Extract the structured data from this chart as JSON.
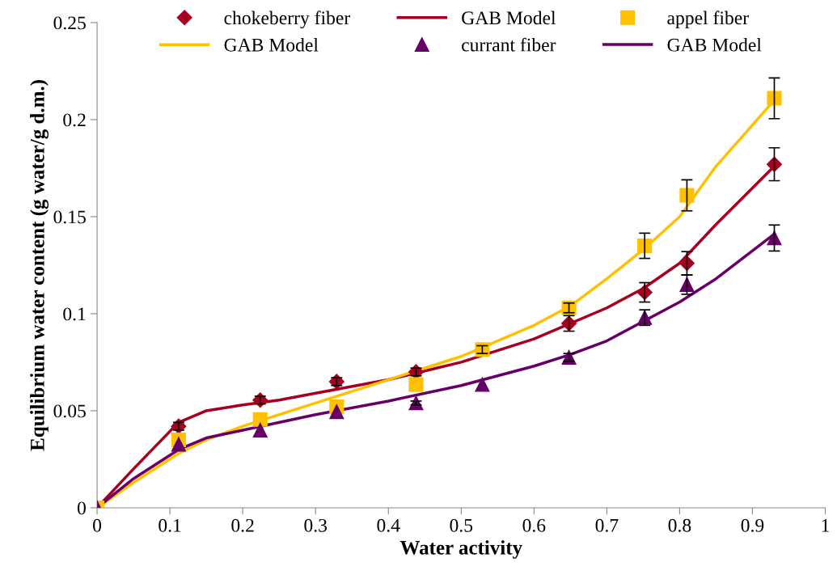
{
  "chart_data": {
    "type": "scatter",
    "xlabel": "Water activity",
    "ylabel": "Equilibrium water content (g water/g d.m.)",
    "xlim": [
      0,
      1
    ],
    "xticks": [
      0,
      0.1,
      0.2,
      0.3,
      0.4,
      0.5,
      0.6,
      0.7,
      0.8,
      0.9,
      1
    ],
    "ylim": [
      0,
      0.25
    ],
    "yticks": [
      0,
      0.05,
      0.1,
      0.15,
      0.2,
      0.25
    ],
    "grid": false,
    "legend": "top",
    "x": [
      0,
      0.112,
      0.224,
      0.329,
      0.438,
      0.529,
      0.648,
      0.752,
      0.81,
      0.93
    ],
    "series": [
      {
        "name": "chokeberry fiber",
        "marker": "diamond",
        "color": "#a50021",
        "values": [
          null,
          0.042,
          0.0555,
          0.065,
          0.07,
          null,
          0.095,
          0.111,
          0.126,
          0.177
        ],
        "errors": [
          null,
          0.002,
          0.002,
          0.002,
          0.002,
          null,
          0.004,
          0.005,
          0.006,
          0.0085
        ]
      },
      {
        "name": "GAB Model",
        "type": "line",
        "color": "#a50021",
        "x": [
          0,
          0.05,
          0.112,
          0.15,
          0.2,
          0.25,
          0.3,
          0.4,
          0.5,
          0.6,
          0.7,
          0.75,
          0.8,
          0.85,
          0.93
        ],
        "values": [
          0,
          0.02,
          0.044,
          0.05,
          0.053,
          0.0555,
          0.059,
          0.066,
          0.075,
          0.087,
          0.103,
          0.113,
          0.126,
          0.146,
          0.176
        ]
      },
      {
        "name": "appel fiber",
        "marker": "square",
        "color": "#ffc000",
        "values": [
          0,
          0.035,
          0.0455,
          0.052,
          0.0635,
          0.0815,
          0.103,
          0.135,
          0.161,
          0.211
        ],
        "errors": [
          null,
          null,
          null,
          null,
          null,
          0.002,
          0.0025,
          0.0065,
          0.008,
          0.0105
        ]
      },
      {
        "name": "GAB Model",
        "type": "line",
        "color": "#ffc000",
        "x": [
          0,
          0.05,
          0.112,
          0.15,
          0.2,
          0.3,
          0.4,
          0.5,
          0.6,
          0.65,
          0.7,
          0.75,
          0.8,
          0.85,
          0.93
        ],
        "values": [
          0,
          0.013,
          0.028,
          0.035,
          0.042,
          0.054,
          0.066,
          0.078,
          0.094,
          0.104,
          0.118,
          0.133,
          0.15,
          0.176,
          0.21
        ]
      },
      {
        "name": "currant fiber",
        "marker": "triangle",
        "color": "#660066",
        "values": [
          0,
          0.0327,
          0.04,
          0.0495,
          0.054,
          0.0635,
          0.0775,
          0.098,
          0.115,
          0.139
        ],
        "errors": [
          null,
          null,
          null,
          null,
          0.001,
          null,
          0.002,
          0.004,
          0.005,
          0.0067
        ]
      },
      {
        "name": "GAB Model",
        "type": "line",
        "color": "#660066",
        "x": [
          0,
          0.05,
          0.112,
          0.15,
          0.2,
          0.3,
          0.4,
          0.5,
          0.6,
          0.65,
          0.7,
          0.75,
          0.8,
          0.85,
          0.93
        ],
        "values": [
          0,
          0.015,
          0.03,
          0.036,
          0.04,
          0.048,
          0.055,
          0.063,
          0.073,
          0.079,
          0.086,
          0.096,
          0.106,
          0.118,
          0.141
        ]
      }
    ]
  }
}
